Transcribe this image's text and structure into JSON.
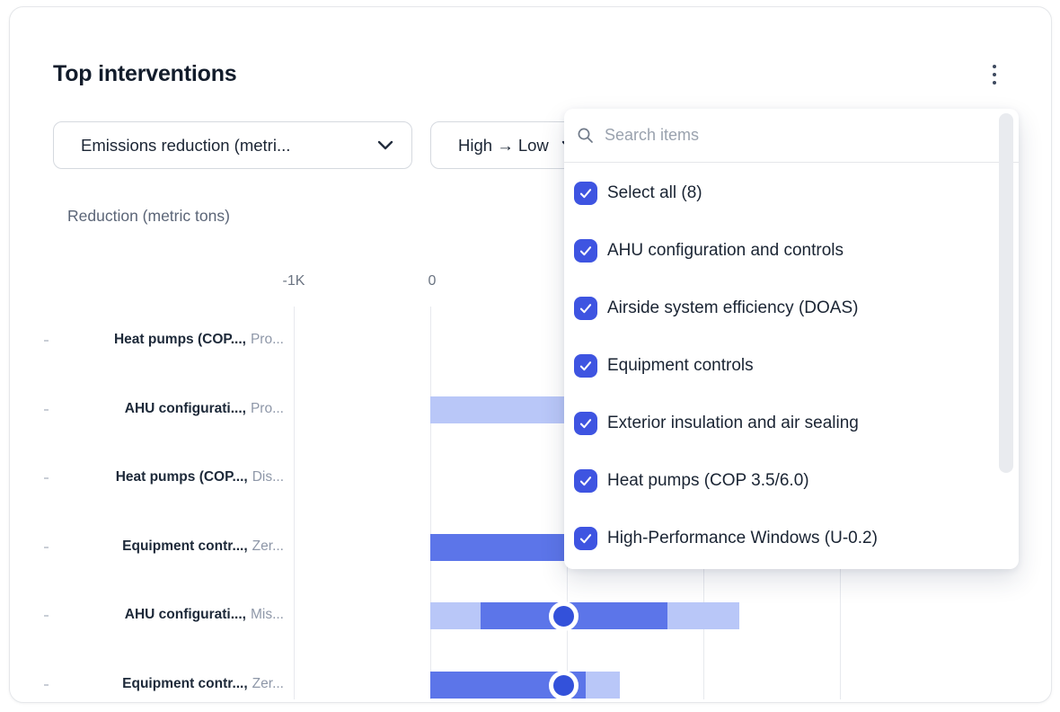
{
  "card": {
    "title": "Top interventions",
    "kebab_icon": "kebab-menu-icon"
  },
  "filters": {
    "metric_select": {
      "value": "Emissions reduction (metri...",
      "chevron_icon": "chevron-down-icon"
    },
    "sort_select": {
      "value": "High → Low"
    }
  },
  "dropdown": {
    "search": {
      "placeholder": "Search items",
      "icon": "search-icon"
    },
    "items": [
      {
        "label": "Select all (8)",
        "checked": true
      },
      {
        "label": "AHU configuration and controls",
        "checked": true
      },
      {
        "label": "Airside system efficiency (DOAS)",
        "checked": true
      },
      {
        "label": "Equipment controls",
        "checked": true
      },
      {
        "label": "Exterior insulation and air sealing",
        "checked": true
      },
      {
        "label": "Heat pumps (COP 3.5/6.0)",
        "checked": true
      },
      {
        "label": "High-Performance Windows (U-0.2)",
        "checked": true
      }
    ]
  },
  "chart_data": {
    "type": "bar",
    "orientation": "horizontal",
    "title": "Reduction (metric tons)",
    "xlabel": "Reduction (metric tons)",
    "x_ticks_visible": [
      "-1K",
      "0"
    ],
    "x_unit": "metric tons",
    "grid": true,
    "note": "right side of plot and ticks beyond 0 are hidden behind the open dropdown",
    "rows": [
      {
        "label_bold": "Heat pumps (COP...,",
        "label_gray": "Pro...",
        "segments": [],
        "marker": null
      },
      {
        "label_bold": "AHU configurati...,",
        "label_gray": "Pro...",
        "segments": [
          {
            "tone": "light",
            "from": 0,
            "to": 1100,
            "hidden_end": true
          }
        ],
        "marker": null
      },
      {
        "label_bold": "Heat pumps (COP...,",
        "label_gray": "Dis...",
        "segments": [],
        "marker": null
      },
      {
        "label_bold": "Equipment contr...,",
        "label_gray": "Zer...",
        "segments": [
          {
            "tone": "solid",
            "from": 0,
            "to": 1100,
            "hidden_end": true
          }
        ],
        "marker": null
      },
      {
        "label_bold": "AHU configurati...,",
        "label_gray": "Mis...",
        "segments": [
          {
            "tone": "light",
            "from": 0,
            "to": 370
          },
          {
            "tone": "solid",
            "from": 370,
            "to": 1740
          },
          {
            "tone": "light",
            "from": 1740,
            "to": 2260
          }
        ],
        "marker": 980
      },
      {
        "label_bold": "Equipment contr...,",
        "label_gray": "Zer...",
        "segments": [
          {
            "tone": "solid",
            "from": 0,
            "to": 1140
          },
          {
            "tone": "light",
            "from": 1140,
            "to": 1390
          }
        ],
        "marker": 980
      }
    ]
  },
  "colors": {
    "accent_checkbox": "#3e54e1",
    "bar_solid": "#5c75e9",
    "bar_light": "#b9c7f8",
    "marker_fill": "#3351da",
    "title_text": "#121c2b",
    "grid_line": "#e7e9ee"
  }
}
